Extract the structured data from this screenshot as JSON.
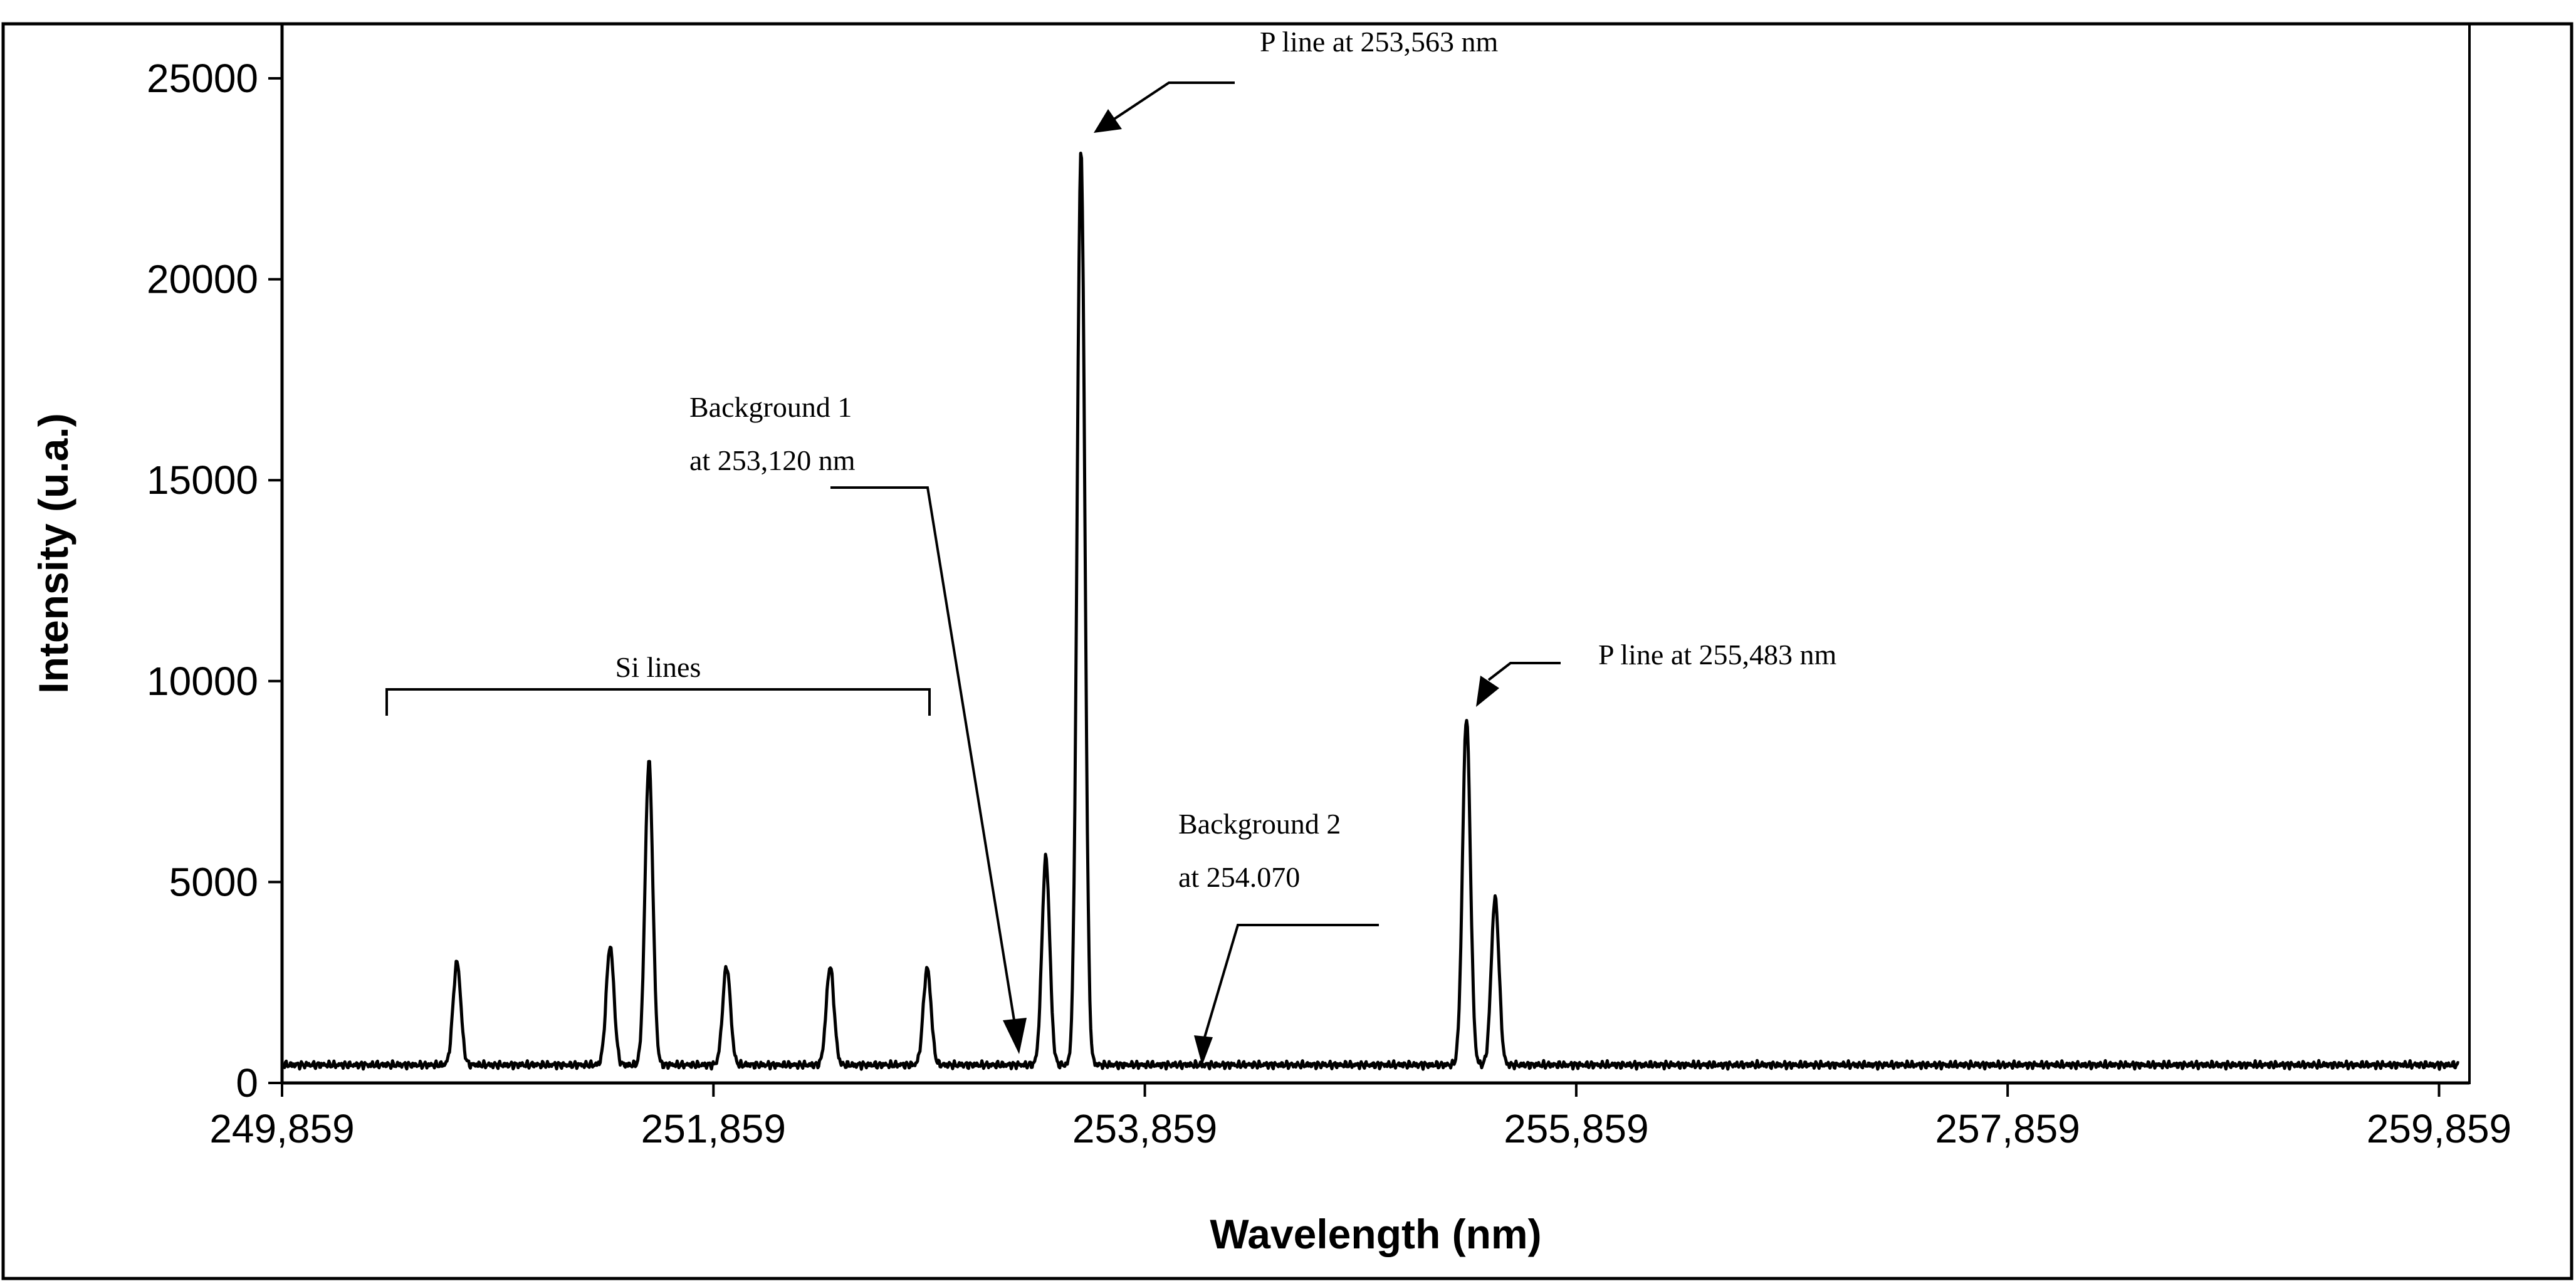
{
  "chart_data": {
    "type": "line",
    "xlabel": "Wavelength (nm)",
    "ylabel": "Intensity (u.a.)",
    "xlim": [
      249.859,
      260.0
    ],
    "ylim": [
      0,
      25000
    ],
    "y_ticks": [
      0,
      5000,
      10000,
      15000,
      20000,
      25000
    ],
    "y_tick_labels": [
      "0",
      "5000",
      "10000",
      "15000",
      "20000",
      "25000"
    ],
    "x_ticks": [
      249.859,
      251.859,
      253.859,
      255.859,
      257.859,
      259.859
    ],
    "x_tick_labels": [
      "249,859",
      "251,859",
      "253,859",
      "255,859",
      "257,859",
      "259,859"
    ],
    "grid": false,
    "legend": "none",
    "line_color": "#000000",
    "baseline": 450,
    "peaks": [
      {
        "x": 250.67,
        "y": 3000
      },
      {
        "x": 251.38,
        "y": 3400
      },
      {
        "x": 251.56,
        "y": 8000
      },
      {
        "x": 251.92,
        "y": 2900
      },
      {
        "x": 252.4,
        "y": 2900
      },
      {
        "x": 252.85,
        "y": 2850
      },
      {
        "x": 253.4,
        "y": 5600
      },
      {
        "x": 253.563,
        "y": 23200
      },
      {
        "x": 255.35,
        "y": 9100
      },
      {
        "x": 255.483,
        "y": 4600
      }
    ],
    "annotations": {
      "si_lines": "Si lines",
      "background1_line1": "Background 1",
      "background1_line2": "at 253,120 nm",
      "p_line_1": "P line at 253,563 nm",
      "background2_line1": "Background 2",
      "background2_line2": "at 254.070",
      "p_line_2": "P line at 255,483 nm"
    }
  }
}
